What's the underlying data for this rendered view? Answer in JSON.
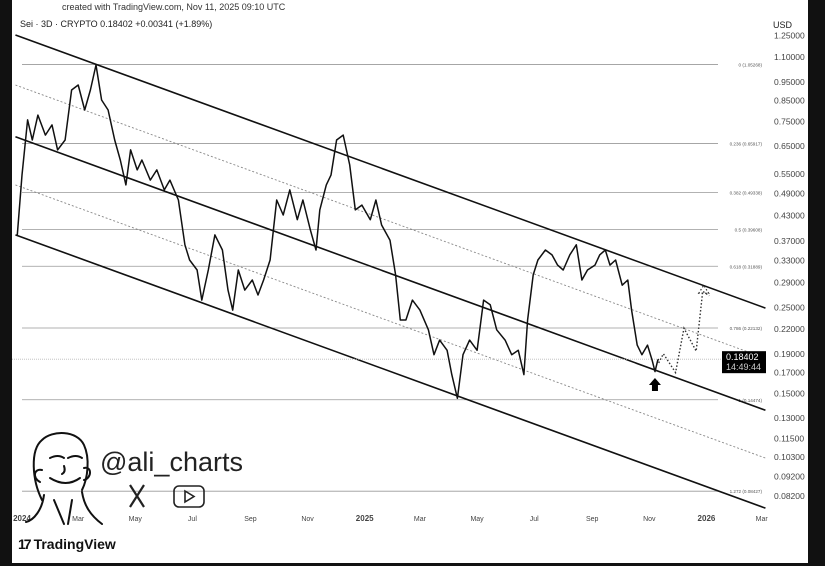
{
  "header": {
    "created": "created with TradingView.com, Nov 11, 2025 09:10 UTC",
    "symbol_line": "Sei · 3D · CRYPTO  0.18402  +0.00341 (+1.89%)"
  },
  "branding": {
    "handle": "@ali_charts",
    "tradingview": "TradingView",
    "icons": [
      "avatar-illustration",
      "x-logo-icon",
      "youtube-play-icon",
      "tradingview-logo-icon"
    ]
  },
  "chart_data": {
    "type": "line",
    "scale": "log",
    "currency_label": "USD",
    "ylim": [
      0.077,
      1.26
    ],
    "xlim": [
      "2023-12-24",
      "2026-03-10"
    ],
    "grid": false,
    "y_ticks": [
      "1.25000",
      "1.10000",
      "0.95000",
      "0.85000",
      "0.75000",
      "0.65000",
      "0.55000",
      "0.49000",
      "0.43000",
      "0.37000",
      "0.33000",
      "0.29000",
      "0.25000",
      "0.22000",
      "0.19000",
      "0.17000",
      "0.15000",
      "0.13000",
      "0.11500",
      "0.10300",
      "0.09200",
      "0.08200"
    ],
    "x_ticks": [
      {
        "label": "2024",
        "date": "2024-01-01"
      },
      {
        "label": "Mar",
        "date": "2024-03-01"
      },
      {
        "label": "May",
        "date": "2024-05-01"
      },
      {
        "label": "Jul",
        "date": "2024-07-01"
      },
      {
        "label": "Sep",
        "date": "2024-09-01"
      },
      {
        "label": "Nov",
        "date": "2024-11-01"
      },
      {
        "label": "2025",
        "date": "2025-01-01"
      },
      {
        "label": "Mar",
        "date": "2025-03-01"
      },
      {
        "label": "May",
        "date": "2025-05-01"
      },
      {
        "label": "Jul",
        "date": "2025-07-01"
      },
      {
        "label": "Sep",
        "date": "2025-09-01"
      },
      {
        "label": "Nov",
        "date": "2025-11-01"
      },
      {
        "label": "2026",
        "date": "2026-01-01"
      },
      {
        "label": "Mar",
        "date": "2026-03-01"
      }
    ],
    "last_price": {
      "value": "0.18402",
      "countdown": "14:49:44",
      "price": 0.18402
    },
    "series": [
      {
        "points": [
          [
            "2023-12-27",
            0.384
          ],
          [
            "2024-01-01",
            0.547
          ],
          [
            "2024-01-07",
            0.758
          ],
          [
            "2024-01-12",
            0.673
          ],
          [
            "2024-01-18",
            0.78
          ],
          [
            "2024-01-26",
            0.693
          ],
          [
            "2024-02-02",
            0.736
          ],
          [
            "2024-02-08",
            0.635
          ],
          [
            "2024-02-16",
            0.673
          ],
          [
            "2024-02-23",
            0.905
          ],
          [
            "2024-03-01",
            0.932
          ],
          [
            "2024-03-08",
            0.804
          ],
          [
            "2024-03-14",
            0.905
          ],
          [
            "2024-03-20",
            1.049
          ],
          [
            "2024-03-26",
            0.853
          ],
          [
            "2024-04-02",
            0.804
          ],
          [
            "2024-04-09",
            0.673
          ],
          [
            "2024-04-15",
            0.598
          ],
          [
            "2024-04-21",
            0.516
          ],
          [
            "2024-04-26",
            0.635
          ],
          [
            "2024-05-03",
            0.564
          ],
          [
            "2024-05-08",
            0.598
          ],
          [
            "2024-05-17",
            0.531
          ],
          [
            "2024-05-24",
            0.564
          ],
          [
            "2024-06-01",
            0.501
          ],
          [
            "2024-06-07",
            0.531
          ],
          [
            "2024-06-16",
            0.472
          ],
          [
            "2024-06-23",
            0.362
          ],
          [
            "2024-06-28",
            0.331
          ],
          [
            "2024-07-06",
            0.312
          ],
          [
            "2024-07-11",
            0.261
          ],
          [
            "2024-07-18",
            0.312
          ],
          [
            "2024-07-25",
            0.384
          ],
          [
            "2024-08-02",
            0.351
          ],
          [
            "2024-08-08",
            0.277
          ],
          [
            "2024-08-13",
            0.246
          ],
          [
            "2024-08-19",
            0.312
          ],
          [
            "2024-08-26",
            0.277
          ],
          [
            "2024-09-03",
            0.294
          ],
          [
            "2024-09-09",
            0.269
          ],
          [
            "2024-09-15",
            0.294
          ],
          [
            "2024-09-22",
            0.331
          ],
          [
            "2024-09-29",
            0.472
          ],
          [
            "2024-10-06",
            0.432
          ],
          [
            "2024-10-13",
            0.501
          ],
          [
            "2024-10-21",
            0.42
          ],
          [
            "2024-10-27",
            0.472
          ],
          [
            "2024-11-04",
            0.395
          ],
          [
            "2024-11-10",
            0.351
          ],
          [
            "2024-11-14",
            0.445
          ],
          [
            "2024-11-21",
            0.516
          ],
          [
            "2024-11-26",
            0.547
          ],
          [
            "2024-12-02",
            0.673
          ],
          [
            "2024-12-09",
            0.693
          ],
          [
            "2024-12-16",
            0.581
          ],
          [
            "2024-12-22",
            0.445
          ],
          [
            "2024-12-29",
            0.458
          ],
          [
            "2025-01-07",
            0.42
          ],
          [
            "2025-01-13",
            0.472
          ],
          [
            "2025-01-19",
            0.407
          ],
          [
            "2025-01-28",
            0.372
          ],
          [
            "2025-02-03",
            0.303
          ],
          [
            "2025-02-08",
            0.232
          ],
          [
            "2025-02-14",
            0.232
          ],
          [
            "2025-02-21",
            0.261
          ],
          [
            "2025-03-01",
            0.246
          ],
          [
            "2025-03-10",
            0.219
          ],
          [
            "2025-03-16",
            0.189
          ],
          [
            "2025-03-22",
            0.206
          ],
          [
            "2025-03-30",
            0.194
          ],
          [
            "2025-04-04",
            0.168
          ],
          [
            "2025-04-10",
            0.146
          ],
          [
            "2025-04-16",
            0.189
          ],
          [
            "2025-04-23",
            0.206
          ],
          [
            "2025-05-01",
            0.194
          ],
          [
            "2025-05-08",
            0.261
          ],
          [
            "2025-05-15",
            0.254
          ],
          [
            "2025-05-22",
            0.219
          ],
          [
            "2025-05-31",
            0.206
          ],
          [
            "2025-06-07",
            0.189
          ],
          [
            "2025-06-14",
            0.194
          ],
          [
            "2025-06-20",
            0.168
          ],
          [
            "2025-06-24",
            0.232
          ],
          [
            "2025-06-30",
            0.303
          ],
          [
            "2025-07-05",
            0.331
          ],
          [
            "2025-07-13",
            0.351
          ],
          [
            "2025-07-20",
            0.341
          ],
          [
            "2025-07-26",
            0.321
          ],
          [
            "2025-08-01",
            0.312
          ],
          [
            "2025-08-08",
            0.341
          ],
          [
            "2025-08-15",
            0.362
          ],
          [
            "2025-08-21",
            0.294
          ],
          [
            "2025-08-27",
            0.312
          ],
          [
            "2025-09-04",
            0.321
          ],
          [
            "2025-09-09",
            0.341
          ],
          [
            "2025-09-15",
            0.351
          ],
          [
            "2025-09-20",
            0.321
          ],
          [
            "2025-09-26",
            0.331
          ],
          [
            "2025-10-03",
            0.285
          ],
          [
            "2025-10-09",
            0.294
          ],
          [
            "2025-10-13",
            0.246
          ],
          [
            "2025-10-19",
            0.2
          ],
          [
            "2025-10-24",
            0.189
          ],
          [
            "2025-10-30",
            0.2
          ],
          [
            "2025-11-04",
            0.183
          ],
          [
            "2025-11-07",
            0.171
          ],
          [
            "2025-11-10",
            0.183
          ],
          [
            "2025-11-11",
            0.18402
          ]
        ]
      }
    ],
    "fib_levels": [
      {
        "label": "0 (1.05268)",
        "price": 1.05268
      },
      {
        "label": "0.236 (0.65917)",
        "price": 0.65917
      },
      {
        "label": "0.382 (0.49338)",
        "price": 0.49338
      },
      {
        "label": "0.5 (0.39608)",
        "price": 0.39608
      },
      {
        "label": "0.618 (0.31889)",
        "price": 0.31889
      },
      {
        "label": "0.786 (0.22132)",
        "price": 0.22132
      },
      {
        "label": "1 (0.14474)",
        "price": 0.14474
      },
      {
        "label": "1.272 (0.08427)",
        "price": 0.08427
      }
    ],
    "channel_lines": [
      {
        "style": "solid",
        "from": [
          "2023-12-25",
          1.253
        ],
        "to": [
          "2026-03-05",
          0.249
        ]
      },
      {
        "style": "dotted",
        "from": [
          "2023-12-25",
          0.932
        ],
        "to": [
          "2026-03-05",
          0.185
        ]
      },
      {
        "style": "solid",
        "from": [
          "2023-12-25",
          0.686
        ],
        "to": [
          "2026-03-05",
          0.136
        ]
      },
      {
        "style": "dotted",
        "from": [
          "2023-12-25",
          0.516
        ],
        "to": [
          "2026-03-05",
          0.1025
        ]
      },
      {
        "style": "solid",
        "from": [
          "2023-12-25",
          0.384
        ],
        "to": [
          "2026-03-05",
          0.0762
        ]
      }
    ],
    "projection": [
      [
        "2025-11-11",
        0.18
      ],
      [
        "2025-11-16",
        0.19
      ],
      [
        "2025-11-29",
        0.17
      ],
      [
        "2025-12-08",
        0.221
      ],
      [
        "2025-12-21",
        0.193
      ],
      [
        "2025-12-28",
        0.275
      ],
      [
        "2026-01-04",
        0.268
      ]
    ],
    "markers": [
      {
        "type": "up-arrow",
        "date": "2025-11-07",
        "price": 0.158
      }
    ],
    "colors": {
      "line": "#111111",
      "fib": "#888888",
      "dotted": "#777777",
      "price_tag": "#000000"
    }
  }
}
